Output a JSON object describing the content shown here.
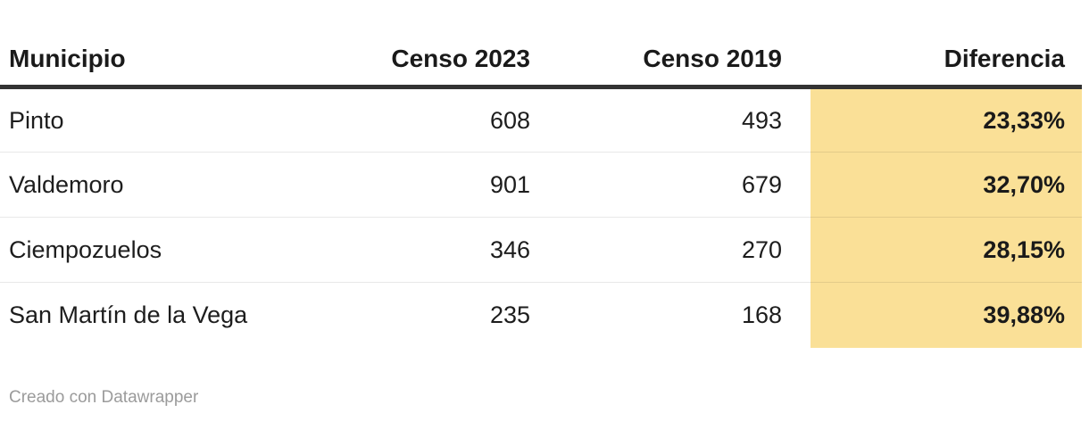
{
  "header": {
    "columns": [
      "Municipio",
      "Censo 2023",
      "Censo 2019",
      "Diferencia"
    ]
  },
  "rows": [
    {
      "cells": [
        "Pinto",
        "608",
        "493",
        "23,33%"
      ]
    },
    {
      "cells": [
        "Valdemoro",
        "901",
        "679",
        "32,70%"
      ]
    },
    {
      "cells": [
        "Ciempozuelos",
        "346",
        "270",
        "28,15%"
      ]
    },
    {
      "cells": [
        "San Martín de la Vega",
        "235",
        "168",
        "39,88%"
      ]
    }
  ],
  "footer": {
    "credit": "Creado con Datawrapper"
  },
  "colors": {
    "highlight": "#fae097",
    "header_rule": "#333333",
    "divider": "rgba(0,0,0,0.09)",
    "text": "#1d1d1d",
    "header_text": "#1a1a1a",
    "credit": "#9b9b9b",
    "background": "#ffffff"
  },
  "chart_data": {
    "type": "table",
    "title": "",
    "columns": [
      "Municipio",
      "Censo 2023",
      "Censo 2019",
      "Diferencia"
    ],
    "rows": [
      [
        "Pinto",
        608,
        493,
        "23,33%"
      ],
      [
        "Valdemoro",
        901,
        679,
        "32,70%"
      ],
      [
        "Ciempozuelos",
        346,
        270,
        "28,15%"
      ],
      [
        "San Martín de la Vega",
        235,
        168,
        "39,88%"
      ]
    ],
    "column_alignments": [
      "left",
      "right",
      "right",
      "right"
    ],
    "highlighted_column": "Diferencia",
    "highlighted_column_style": "bold text on light yellow background",
    "credit": "Creado con Datawrapper"
  }
}
